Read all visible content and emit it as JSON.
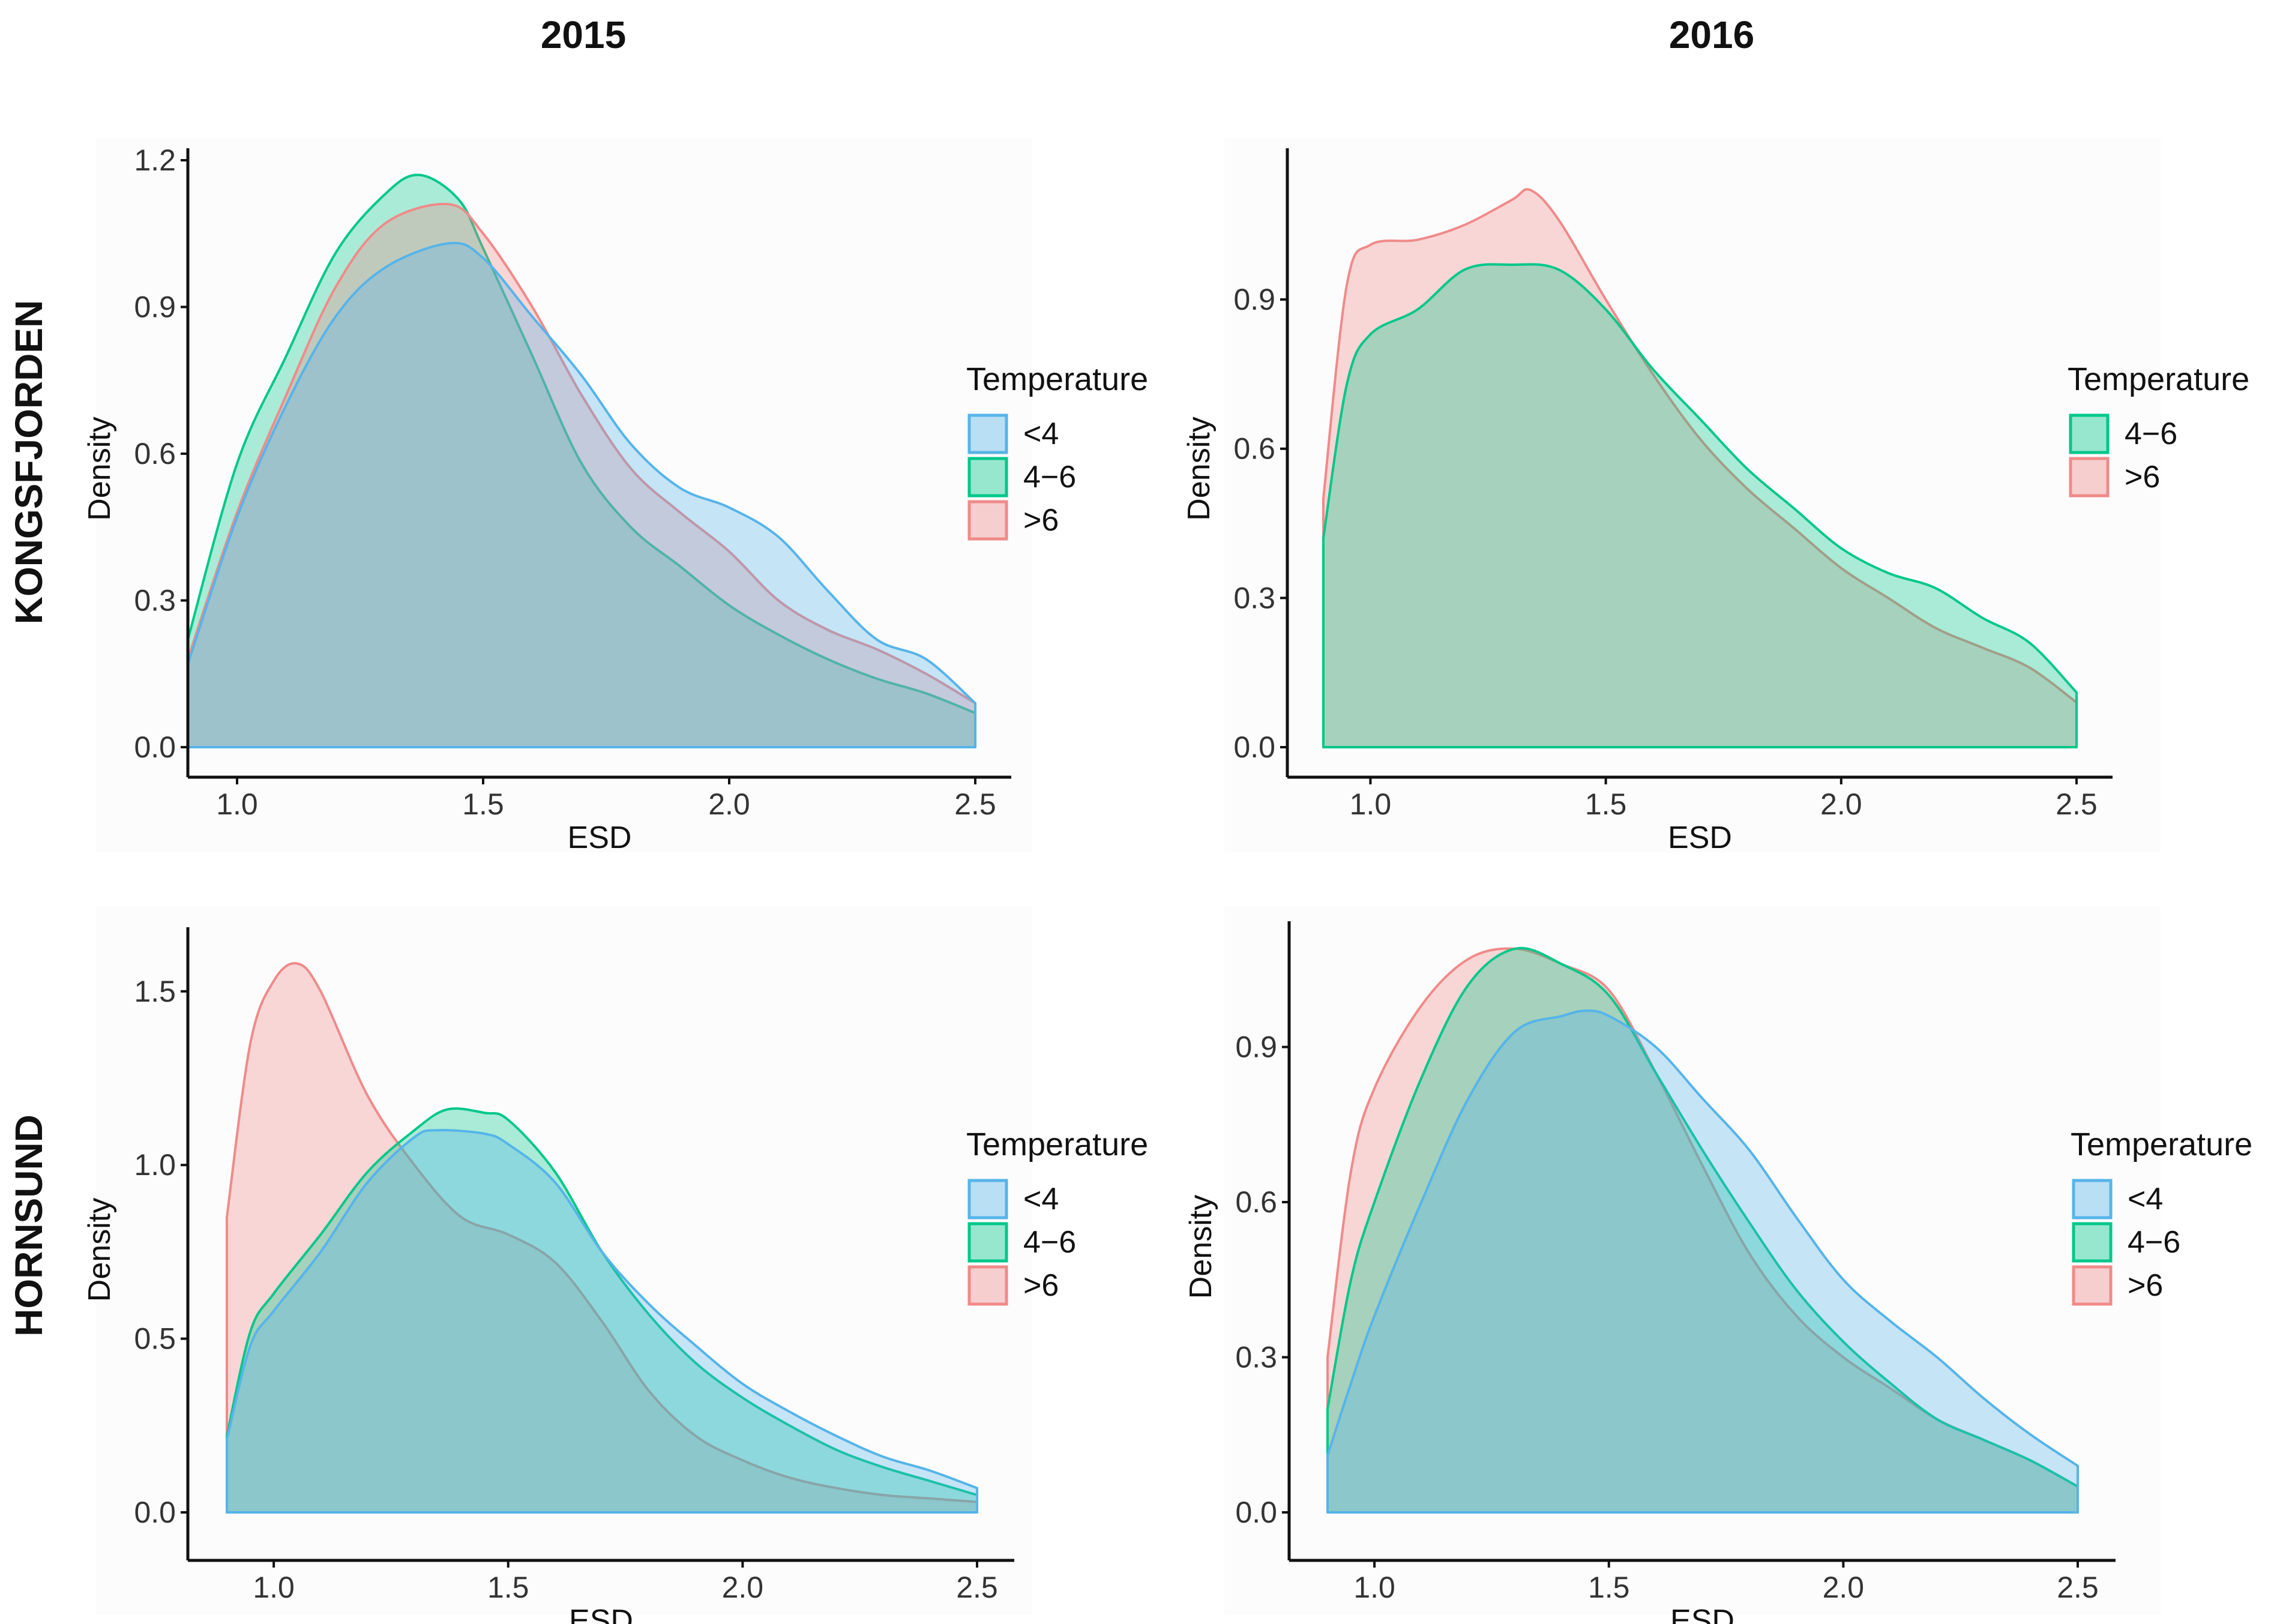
{
  "figure": {
    "col_titles": [
      "2015",
      "2016"
    ],
    "row_titles": [
      "KONGSFJORDEN",
      "HORNSUND"
    ]
  },
  "colors": {
    "<4": "#56b4e9",
    "4−6": "#00c78a",
    ">6": "#f08a8a"
  },
  "chart_data": [
    {
      "type": "area",
      "subtype": "density",
      "title": "KONGSFJORDEN 2015",
      "xlabel": "ESD",
      "ylabel": "Density",
      "xlim": [
        0.9,
        2.5
      ],
      "ylim": [
        0,
        1.2
      ],
      "xticks": [
        "1.0",
        "1.5",
        "2.0",
        "2.5"
      ],
      "yticks": [
        "0.0",
        "0.3",
        "0.6",
        "0.9",
        "1.2"
      ],
      "legend": {
        "title": "Temperature",
        "entries": [
          "<4",
          "4−6",
          ">6"
        ],
        "position": "right"
      },
      "series": [
        {
          "name": "4−6",
          "x": [
            0.9,
            1.0,
            1.1,
            1.2,
            1.3,
            1.37,
            1.45,
            1.5,
            1.6,
            1.7,
            1.8,
            1.9,
            2.0,
            2.1,
            2.2,
            2.3,
            2.4,
            2.5
          ],
          "values": [
            0.22,
            0.58,
            0.8,
            1.01,
            1.13,
            1.17,
            1.12,
            1.02,
            0.8,
            0.58,
            0.45,
            0.37,
            0.29,
            0.23,
            0.18,
            0.14,
            0.11,
            0.07
          ]
        },
        {
          "name": ">6",
          "x": [
            0.9,
            1.0,
            1.1,
            1.2,
            1.3,
            1.43,
            1.5,
            1.6,
            1.7,
            1.8,
            1.9,
            2.0,
            2.1,
            2.2,
            2.3,
            2.4,
            2.5
          ],
          "values": [
            0.18,
            0.48,
            0.72,
            0.94,
            1.07,
            1.11,
            1.05,
            0.9,
            0.72,
            0.57,
            0.48,
            0.4,
            0.3,
            0.24,
            0.2,
            0.15,
            0.09
          ]
        },
        {
          "name": "<4",
          "x": [
            0.9,
            1.0,
            1.1,
            1.2,
            1.3,
            1.43,
            1.5,
            1.6,
            1.7,
            1.8,
            1.9,
            2.0,
            2.1,
            2.2,
            2.3,
            2.4,
            2.5
          ],
          "values": [
            0.17,
            0.47,
            0.7,
            0.88,
            0.98,
            1.03,
            1.0,
            0.88,
            0.76,
            0.62,
            0.53,
            0.49,
            0.43,
            0.32,
            0.22,
            0.18,
            0.09
          ]
        }
      ]
    },
    {
      "type": "area",
      "subtype": "density",
      "title": "KONGSFJORDEN 2016",
      "xlabel": "ESD",
      "ylabel": "Density",
      "xlim": [
        0.9,
        2.5
      ],
      "ylim": [
        0,
        1.18
      ],
      "xticks": [
        "1.0",
        "1.5",
        "2.0",
        "2.5"
      ],
      "yticks": [
        "0.0",
        "0.3",
        "0.6",
        "0.9"
      ],
      "legend": {
        "title": "Temperature",
        "entries": [
          "4−6",
          ">6"
        ],
        "position": "right"
      },
      "series": [
        {
          "name": ">6",
          "x": [
            0.9,
            0.95,
            1.0,
            1.1,
            1.2,
            1.3,
            1.34,
            1.4,
            1.5,
            1.6,
            1.7,
            1.8,
            1.9,
            2.0,
            2.1,
            2.2,
            2.3,
            2.4,
            2.5
          ],
          "values": [
            0.5,
            0.93,
            1.01,
            1.02,
            1.05,
            1.1,
            1.12,
            1.06,
            0.9,
            0.75,
            0.62,
            0.52,
            0.44,
            0.36,
            0.3,
            0.24,
            0.2,
            0.16,
            0.09
          ]
        },
        {
          "name": "4−6",
          "x": [
            0.9,
            0.95,
            1.0,
            1.1,
            1.2,
            1.3,
            1.4,
            1.5,
            1.6,
            1.7,
            1.8,
            1.9,
            2.0,
            2.1,
            2.2,
            2.3,
            2.4,
            2.5
          ],
          "values": [
            0.42,
            0.73,
            0.83,
            0.88,
            0.96,
            0.97,
            0.96,
            0.88,
            0.76,
            0.66,
            0.56,
            0.48,
            0.4,
            0.35,
            0.32,
            0.26,
            0.21,
            0.11
          ]
        }
      ]
    },
    {
      "type": "area",
      "subtype": "density",
      "title": "HORNSUND 2015",
      "xlabel": "ESD",
      "ylabel": "Density",
      "xlim": [
        0.9,
        2.5
      ],
      "ylim": [
        0,
        1.65
      ],
      "xticks": [
        "1.0",
        "1.5",
        "2.0",
        "2.5"
      ],
      "yticks": [
        "0.0",
        "0.5",
        "1.0",
        "1.5"
      ],
      "legend": {
        "title": "Temperature",
        "entries": [
          "<4",
          "4−6",
          ">6"
        ],
        "position": "right"
      },
      "series": [
        {
          "name": ">6",
          "x": [
            0.9,
            0.95,
            1.0,
            1.05,
            1.1,
            1.2,
            1.3,
            1.4,
            1.5,
            1.6,
            1.7,
            1.8,
            1.9,
            2.0,
            2.1,
            2.2,
            2.3,
            2.4,
            2.5
          ],
          "values": [
            0.85,
            1.35,
            1.53,
            1.58,
            1.5,
            1.2,
            1.0,
            0.85,
            0.8,
            0.72,
            0.55,
            0.35,
            0.22,
            0.15,
            0.1,
            0.07,
            0.05,
            0.04,
            0.03
          ]
        },
        {
          "name": "4−6",
          "x": [
            0.9,
            0.95,
            1.0,
            1.1,
            1.2,
            1.3,
            1.37,
            1.45,
            1.5,
            1.6,
            1.7,
            1.8,
            1.9,
            2.0,
            2.1,
            2.2,
            2.3,
            2.4,
            2.5
          ],
          "values": [
            0.22,
            0.52,
            0.63,
            0.8,
            0.98,
            1.1,
            1.16,
            1.15,
            1.13,
            0.98,
            0.75,
            0.57,
            0.43,
            0.33,
            0.25,
            0.18,
            0.13,
            0.09,
            0.05
          ]
        },
        {
          "name": "<4",
          "x": [
            0.9,
            0.95,
            1.0,
            1.1,
            1.2,
            1.3,
            1.35,
            1.45,
            1.5,
            1.6,
            1.7,
            1.8,
            1.9,
            2.0,
            2.1,
            2.2,
            2.3,
            2.4,
            2.5
          ],
          "values": [
            0.21,
            0.48,
            0.58,
            0.75,
            0.95,
            1.08,
            1.1,
            1.09,
            1.06,
            0.95,
            0.75,
            0.6,
            0.48,
            0.37,
            0.29,
            0.22,
            0.16,
            0.12,
            0.07
          ]
        }
      ]
    },
    {
      "type": "area",
      "subtype": "density",
      "title": "HORNSUND 2016",
      "xlabel": "ESD",
      "ylabel": "Density",
      "xlim": [
        0.9,
        2.5
      ],
      "ylim": [
        0,
        1.12
      ],
      "xticks": [
        "1.0",
        "1.5",
        "2.0",
        "2.5"
      ],
      "yticks": [
        "0.0",
        "0.3",
        "0.6",
        "0.9"
      ],
      "legend": {
        "title": "Temperature",
        "entries": [
          "<4",
          "4−6",
          ">6"
        ],
        "position": "right"
      },
      "series": [
        {
          "name": ">6",
          "x": [
            0.9,
            0.95,
            1.0,
            1.1,
            1.2,
            1.3,
            1.4,
            1.5,
            1.6,
            1.7,
            1.8,
            1.9,
            2.0,
            2.1,
            2.2,
            2.3,
            2.4,
            2.5
          ],
          "values": [
            0.3,
            0.66,
            0.82,
            0.98,
            1.07,
            1.09,
            1.06,
            1.01,
            0.85,
            0.67,
            0.5,
            0.38,
            0.3,
            0.24,
            0.18,
            0.14,
            0.1,
            0.05
          ]
        },
        {
          "name": "4−6",
          "x": [
            0.9,
            0.95,
            1.0,
            1.1,
            1.2,
            1.3,
            1.4,
            1.5,
            1.6,
            1.7,
            1.8,
            1.9,
            2.0,
            2.1,
            2.2,
            2.3,
            2.4,
            2.5
          ],
          "values": [
            0.2,
            0.45,
            0.6,
            0.84,
            1.02,
            1.09,
            1.06,
            1.0,
            0.85,
            0.7,
            0.56,
            0.43,
            0.33,
            0.25,
            0.18,
            0.14,
            0.1,
            0.05
          ]
        },
        {
          "name": "<4",
          "x": [
            0.9,
            0.95,
            1.0,
            1.1,
            1.2,
            1.3,
            1.4,
            1.45,
            1.5,
            1.6,
            1.7,
            1.8,
            1.9,
            2.0,
            2.1,
            2.2,
            2.3,
            2.4,
            2.5
          ],
          "values": [
            0.11,
            0.25,
            0.38,
            0.6,
            0.8,
            0.93,
            0.96,
            0.97,
            0.96,
            0.9,
            0.8,
            0.7,
            0.57,
            0.45,
            0.37,
            0.3,
            0.22,
            0.15,
            0.09
          ]
        }
      ]
    }
  ]
}
